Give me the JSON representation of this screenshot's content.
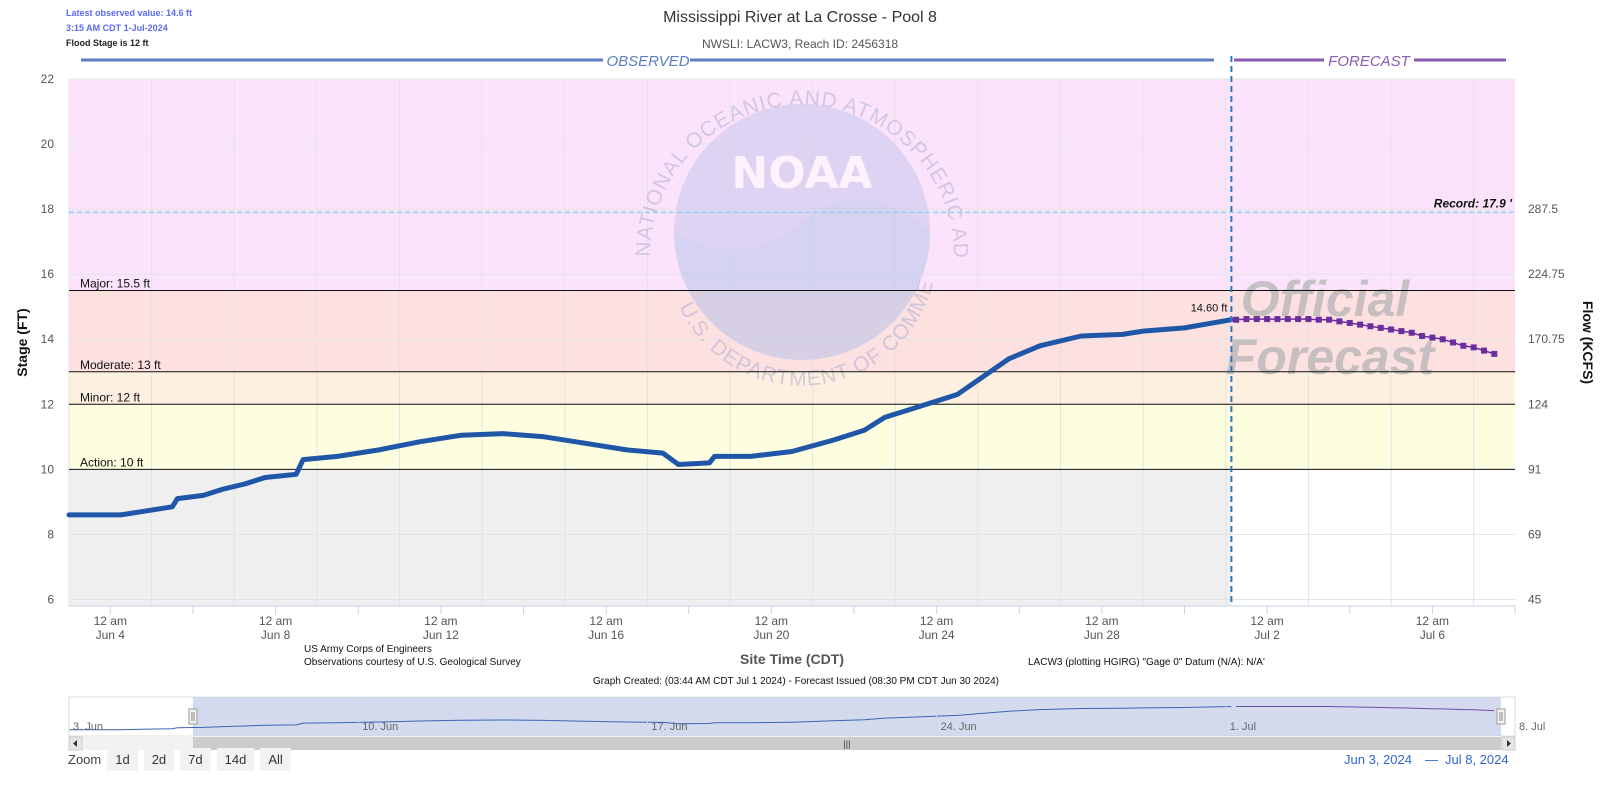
{
  "header": {
    "latest_value": "Latest observed value: 14.6 ft",
    "latest_time": "3:15 AM CDT 1-Jul-2024",
    "flood_stage": "Flood Stage is 12 ft",
    "title": "Mississippi River at La Crosse - Pool 8",
    "subtitle": "NWSLI: LACW3, Reach ID: 2456318",
    "observed_label": "OBSERVED",
    "forecast_label": "FORECAST"
  },
  "watermark": {
    "ring_text": "NATIONAL OCEANIC AND ATMOSPHERIC ADMINISTRATION",
    "bottom_text": "U.S. DEPARTMENT OF COMMERCE",
    "logo": "NOAA",
    "official_1": "Official",
    "official_2": "Forecast"
  },
  "colors": {
    "observed": "#1f56a8",
    "forecast": "#6a2e9e",
    "major_zone": "#fbe4fb",
    "moderate_zone": "#fde0e0",
    "minor_zone": "#fdf0e0",
    "action_zone": "#fdfde0",
    "normal_zone": "#efefef",
    "record_line": "#8fd4f0"
  },
  "chart_data": {
    "type": "line",
    "title": "Mississippi River at La Crosse - Pool 8",
    "ylabel": "Stage (FT)",
    "y2label": "Flow (KCFS)",
    "xlabel": "Site Time (CDT)",
    "ylim": [
      5.8,
      22
    ],
    "y_ticks": [
      6,
      8,
      10,
      12,
      14,
      16,
      18,
      20,
      22
    ],
    "y2_ticks": [
      {
        "stage": 6,
        "label": "45"
      },
      {
        "stage": 8,
        "label": "69"
      },
      {
        "stage": 10,
        "label": "91"
      },
      {
        "stage": 12,
        "label": "124"
      },
      {
        "stage": 14,
        "label": "170.75"
      },
      {
        "stage": 16,
        "label": "224.75"
      },
      {
        "stage": 18,
        "label": "287.5"
      }
    ],
    "x_range_days": [
      "2024-06-03T00:00",
      "2024-07-08T00:00"
    ],
    "x_ticks": [
      {
        "day": "2024-06-04",
        "line1": "12 am",
        "line2": "Jun 4"
      },
      {
        "day": "2024-06-08",
        "line1": "12 am",
        "line2": "Jun 8"
      },
      {
        "day": "2024-06-12",
        "line1": "12 am",
        "line2": "Jun 12"
      },
      {
        "day": "2024-06-16",
        "line1": "12 am",
        "line2": "Jun 16"
      },
      {
        "day": "2024-06-20",
        "line1": "12 am",
        "line2": "Jun 20"
      },
      {
        "day": "2024-06-24",
        "line1": "12 am",
        "line2": "Jun 24"
      },
      {
        "day": "2024-06-28",
        "line1": "12 am",
        "line2": "Jun 28"
      },
      {
        "day": "2024-07-02",
        "line1": "12 am",
        "line2": "Jul 2"
      },
      {
        "day": "2024-07-06",
        "line1": "12 am",
        "line2": "Jul 6"
      }
    ],
    "thresholds": [
      {
        "name": "Major",
        "stage": 15.5,
        "label": "Major: 15.5 ft"
      },
      {
        "name": "Moderate",
        "stage": 13,
        "label": "Moderate: 13 ft"
      },
      {
        "name": "Minor",
        "stage": 12,
        "label": "Minor: 12 ft"
      },
      {
        "name": "Action",
        "stage": 10,
        "label": "Action: 10 ft"
      }
    ],
    "record": {
      "stage": 17.9,
      "label": "Record: 17.9 '"
    },
    "now": "2024-07-01T03:15",
    "now_label": "14.60 ft",
    "observed": [
      [
        "2024-06-03T00:00",
        8.6
      ],
      [
        "2024-06-04T06:00",
        8.6
      ],
      [
        "2024-06-04T18:00",
        8.7
      ],
      [
        "2024-06-05T12:00",
        8.85
      ],
      [
        "2024-06-05T15:00",
        9.1
      ],
      [
        "2024-06-06T06:00",
        9.2
      ],
      [
        "2024-06-06T18:00",
        9.4
      ],
      [
        "2024-06-07T06:00",
        9.55
      ],
      [
        "2024-06-07T18:00",
        9.75
      ],
      [
        "2024-06-08T12:00",
        9.85
      ],
      [
        "2024-06-08T16:00",
        10.3
      ],
      [
        "2024-06-09T12:00",
        10.4
      ],
      [
        "2024-06-10T12:00",
        10.6
      ],
      [
        "2024-06-11T12:00",
        10.85
      ],
      [
        "2024-06-12T12:00",
        11.05
      ],
      [
        "2024-06-13T12:00",
        11.1
      ],
      [
        "2024-06-14T12:00",
        11.0
      ],
      [
        "2024-06-15T12:00",
        10.8
      ],
      [
        "2024-06-16T12:00",
        10.6
      ],
      [
        "2024-06-17T09:00",
        10.5
      ],
      [
        "2024-06-17T18:00",
        10.15
      ],
      [
        "2024-06-18T12:00",
        10.2
      ],
      [
        "2024-06-18T15:00",
        10.4
      ],
      [
        "2024-06-19T12:00",
        10.4
      ],
      [
        "2024-06-20T12:00",
        10.55
      ],
      [
        "2024-06-21T12:00",
        10.9
      ],
      [
        "2024-06-22T06:00",
        11.2
      ],
      [
        "2024-06-22T18:00",
        11.6
      ],
      [
        "2024-06-23T12:00",
        11.9
      ],
      [
        "2024-06-24T12:00",
        12.3
      ],
      [
        "2024-06-25T18:00",
        13.4
      ],
      [
        "2024-06-26T12:00",
        13.8
      ],
      [
        "2024-06-27T12:00",
        14.1
      ],
      [
        "2024-06-28T12:00",
        14.15
      ],
      [
        "2024-06-29T00:00",
        14.25
      ],
      [
        "2024-06-30T00:00",
        14.35
      ],
      [
        "2024-07-01T03:15",
        14.6
      ]
    ],
    "forecast": [
      [
        "2024-07-01T06:00",
        14.6
      ],
      [
        "2024-07-01T12:00",
        14.62
      ],
      [
        "2024-07-01T18:00",
        14.62
      ],
      [
        "2024-07-02T00:00",
        14.62
      ],
      [
        "2024-07-02T06:00",
        14.62
      ],
      [
        "2024-07-02T12:00",
        14.62
      ],
      [
        "2024-07-02T18:00",
        14.62
      ],
      [
        "2024-07-03T00:00",
        14.62
      ],
      [
        "2024-07-03T06:00",
        14.6
      ],
      [
        "2024-07-03T12:00",
        14.6
      ],
      [
        "2024-07-03T18:00",
        14.55
      ],
      [
        "2024-07-04T00:00",
        14.5
      ],
      [
        "2024-07-04T06:00",
        14.45
      ],
      [
        "2024-07-04T12:00",
        14.4
      ],
      [
        "2024-07-04T18:00",
        14.35
      ],
      [
        "2024-07-05T00:00",
        14.3
      ],
      [
        "2024-07-05T06:00",
        14.25
      ],
      [
        "2024-07-05T12:00",
        14.2
      ],
      [
        "2024-07-05T18:00",
        14.1
      ],
      [
        "2024-07-06T00:00",
        14.05
      ],
      [
        "2024-07-06T06:00",
        14.0
      ],
      [
        "2024-07-06T12:00",
        13.9
      ],
      [
        "2024-07-06T18:00",
        13.8
      ],
      [
        "2024-07-07T00:00",
        13.75
      ],
      [
        "2024-07-07T06:00",
        13.65
      ],
      [
        "2024-07-07T12:00",
        13.55
      ]
    ]
  },
  "footer": {
    "credit1": "US Army Corps of Engineers",
    "credit2": "Observations courtesy of U.S. Geological Survey",
    "datum": "LACW3 (plotting HGIRG) \"Gage 0\" Datum (N/A): N/A'",
    "created": "Graph Created: (03:44 AM CDT Jul 1 2024) - Forecast Issued (08:30 PM CDT Jun 30 2024)"
  },
  "navigator": {
    "labels": [
      {
        "day": "2024-06-03",
        "text": "3. Jun"
      },
      {
        "day": "2024-06-10",
        "text": "10. Jun"
      },
      {
        "day": "2024-06-17",
        "text": "17. Jun"
      },
      {
        "day": "2024-06-24",
        "text": "24. Jun"
      },
      {
        "day": "2024-07-01",
        "text": "1. Jul"
      },
      {
        "day": "2024-07-08",
        "text": "8. Jul"
      }
    ],
    "scrollbar_grip": "|||"
  },
  "zoom": {
    "label": "Zoom",
    "buttons": [
      "1d",
      "2d",
      "7d",
      "14d",
      "All"
    ]
  },
  "range": {
    "from": "Jun 3, 2024",
    "separator": "—",
    "to": "Jul 8, 2024"
  }
}
